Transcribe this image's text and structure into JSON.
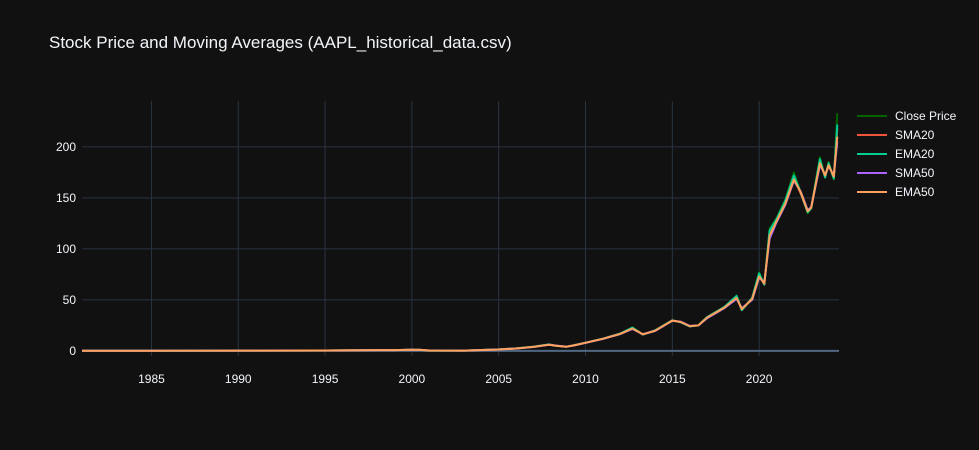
{
  "title": "Stock Price and Moving Averages (AAPL_historical_data.csv)",
  "chart_data": {
    "type": "line",
    "x_ticks": [
      "1985",
      "1990",
      "1995",
      "2000",
      "2005",
      "2010",
      "2015",
      "2020"
    ],
    "y_ticks": [
      "0",
      "50",
      "100",
      "150",
      "200"
    ],
    "xlim": [
      1981.0,
      2024.6
    ],
    "ylim": [
      -5,
      245
    ],
    "grid": true,
    "legend_position": "right",
    "x": [
      1981,
      1985,
      1990,
      1995,
      1999,
      2000,
      2000.5,
      2001,
      2003,
      2005,
      2006,
      2007,
      2007.9,
      2008.3,
      2008.9,
      2009.3,
      2010,
      2011,
      2012,
      2012.7,
      2013.3,
      2014,
      2015,
      2015.5,
      2016,
      2016.5,
      2017,
      2018,
      2018.7,
      2019,
      2019.6,
      2020,
      2020.3,
      2020.6,
      2021,
      2021.5,
      2022,
      2022.4,
      2022.8,
      2023,
      2023.5,
      2023.8,
      2024,
      2024.3,
      2024.5
    ],
    "series": [
      {
        "name": "Close Price",
        "color": "#006400",
        "values": [
          0.1,
          0.1,
          0.3,
          0.4,
          0.8,
          1.2,
          1.0,
          0.3,
          0.3,
          1.5,
          2.5,
          4.0,
          6.5,
          5.0,
          4.0,
          5.5,
          8.0,
          12.0,
          17.0,
          23.0,
          16.0,
          20.0,
          30.0,
          28.0,
          24.0,
          25.0,
          33.0,
          43.0,
          54.0,
          40.0,
          52.0,
          77.0,
          65.0,
          120.0,
          130.0,
          148.0,
          175.0,
          155.0,
          135.0,
          140.0,
          190.0,
          170.0,
          185.0,
          168.0,
          233.0
        ]
      },
      {
        "name": "SMA20",
        "color": "#ef553b",
        "values": [
          0.1,
          0.1,
          0.3,
          0.4,
          0.8,
          1.2,
          1.0,
          0.3,
          0.3,
          1.5,
          2.5,
          4.0,
          6.3,
          5.0,
          4.0,
          5.5,
          8.0,
          12.0,
          17.0,
          22.5,
          16.0,
          20.0,
          30.0,
          28.0,
          24.0,
          25.0,
          33.0,
          43.0,
          53.0,
          40.0,
          52.0,
          75.0,
          65.0,
          116.0,
          128.0,
          146.0,
          170.0,
          154.0,
          136.0,
          140.0,
          186.0,
          171.0,
          183.0,
          170.0,
          218.0
        ]
      },
      {
        "name": "EMA20",
        "color": "#00cc96",
        "values": [
          0.1,
          0.1,
          0.3,
          0.4,
          0.8,
          1.2,
          1.0,
          0.3,
          0.3,
          1.5,
          2.5,
          4.0,
          6.4,
          5.0,
          4.0,
          5.5,
          8.0,
          12.0,
          17.0,
          22.8,
          16.0,
          20.0,
          30.0,
          28.0,
          24.0,
          25.0,
          33.0,
          43.0,
          54.0,
          40.0,
          52.0,
          76.0,
          65.0,
          118.0,
          129.0,
          147.0,
          172.0,
          155.0,
          136.0,
          140.0,
          188.0,
          170.0,
          184.0,
          169.0,
          222.0
        ]
      },
      {
        "name": "SMA50",
        "color": "#ab63fa",
        "values": [
          0.1,
          0.1,
          0.3,
          0.4,
          0.8,
          1.1,
          1.0,
          0.4,
          0.3,
          1.4,
          2.4,
          3.8,
          6.0,
          5.2,
          4.2,
          5.2,
          7.8,
          11.8,
          16.5,
          21.5,
          16.5,
          19.5,
          29.5,
          28.5,
          24.5,
          25.0,
          32.0,
          42.0,
          51.0,
          42.0,
          50.0,
          72.0,
          67.0,
          110.0,
          126.0,
          143.0,
          167.0,
          156.0,
          138.0,
          141.0,
          182.0,
          173.0,
          181.0,
          172.0,
          205.0
        ]
      },
      {
        "name": "EMA50",
        "color": "#ffa15a",
        "values": [
          0.1,
          0.1,
          0.3,
          0.4,
          0.8,
          1.1,
          1.0,
          0.4,
          0.3,
          1.4,
          2.4,
          3.9,
          6.1,
          5.1,
          4.1,
          5.3,
          7.9,
          11.9,
          16.7,
          22.0,
          16.3,
          19.7,
          29.7,
          28.3,
          24.3,
          25.0,
          32.5,
          42.5,
          52.0,
          41.0,
          51.0,
          73.0,
          66.0,
          113.0,
          127.0,
          144.0,
          168.0,
          155.5,
          137.0,
          140.5,
          184.0,
          172.0,
          182.0,
          171.0,
          210.0
        ]
      }
    ]
  }
}
